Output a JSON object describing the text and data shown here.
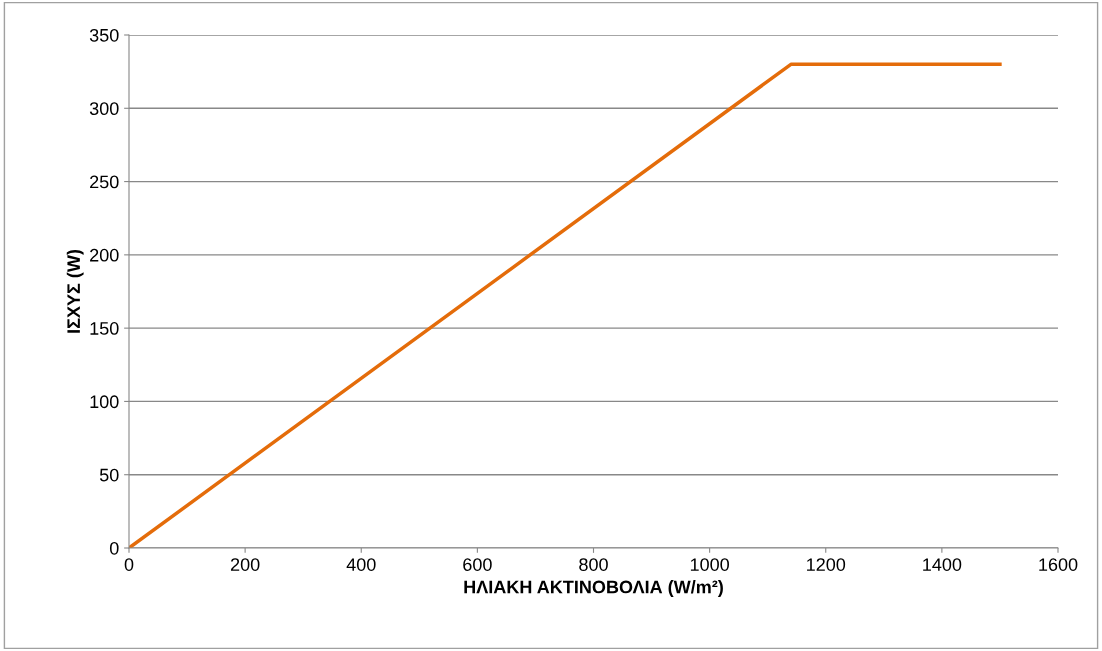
{
  "chart_data": {
    "type": "line",
    "xlabel": "ΗΛΙΑΚΗ ΑΚΤΙΝΟΒΟΛΙΑ (W/m²)",
    "ylabel": "ΙΣΧΥΣ (W)",
    "x": [
      0,
      1140,
      1500
    ],
    "series": [
      {
        "color": "#e46c0a",
        "values": [
          0,
          330,
          330
        ]
      }
    ],
    "xlim": [
      0,
      1600
    ],
    "xticks": [
      0,
      200,
      400,
      600,
      800,
      1000,
      1200,
      1400,
      1600
    ],
    "ylim": [
      0,
      350
    ],
    "yticks": [
      0,
      50,
      100,
      150,
      200,
      250,
      300,
      350
    ],
    "grid": "y",
    "legend": false,
    "marker": "none",
    "line_style": "solid"
  }
}
